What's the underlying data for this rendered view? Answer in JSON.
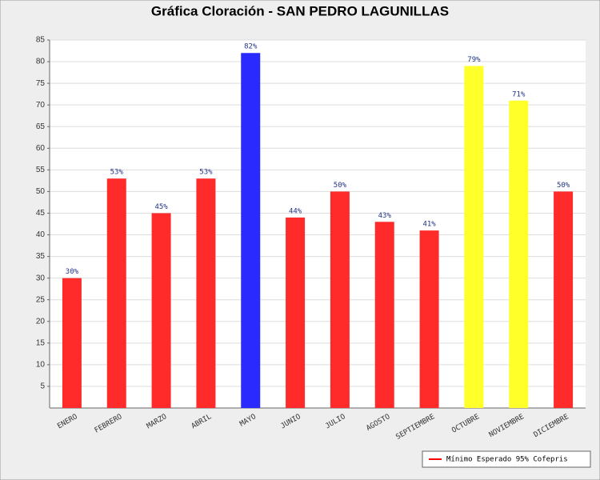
{
  "chart_data": {
    "type": "bar",
    "title": "Gráfica Cloración - SAN PEDRO LAGUNILLAS",
    "categories": [
      "ENERO",
      "FEBRERO",
      "MARZO",
      "ABRIL",
      "MAYO",
      "JUNIO",
      "JULIO",
      "AGOSTO",
      "SEPTIEMBRE",
      "OCTUBRE",
      "NOVIEMBRE",
      "DICIEMBRE"
    ],
    "values": [
      30,
      53,
      45,
      53,
      82,
      44,
      50,
      43,
      41,
      79,
      71,
      50
    ],
    "value_labels": [
      "30%",
      "53%",
      "45%",
      "53%",
      "82%",
      "44%",
      "50%",
      "43%",
      "41%",
      "79%",
      "71%",
      "50%"
    ],
    "colors": [
      "#ff2a2a",
      "#ff2a2a",
      "#ff2a2a",
      "#ff2a2a",
      "#2a2aff",
      "#ff2a2a",
      "#ff2a2a",
      "#ff2a2a",
      "#ff2a2a",
      "#ffff2a",
      "#ffff2a",
      "#ff2a2a"
    ],
    "ylim": [
      0,
      85
    ],
    "yticks": [
      5,
      10,
      15,
      20,
      25,
      30,
      35,
      40,
      45,
      50,
      55,
      60,
      65,
      70,
      75,
      80,
      85
    ],
    "grid": true,
    "legend": {
      "position": "bottom-right",
      "entries": [
        {
          "name": "Mínimo Esperado 95% Cofepris",
          "color": "#ff0000"
        }
      ]
    }
  }
}
